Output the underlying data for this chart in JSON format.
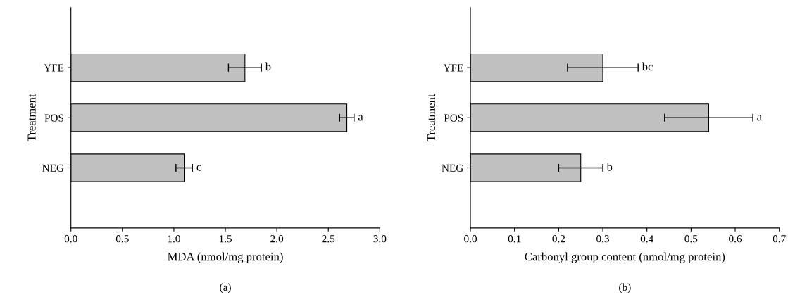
{
  "chart_data": [
    {
      "type": "bar",
      "orientation": "horizontal",
      "xlabel": "MDA (nmol/mg protein)",
      "ylabel": "Treatment",
      "categories": [
        "YFE",
        "POS",
        "NEG"
      ],
      "values": [
        1.69,
        2.68,
        1.1
      ],
      "errors": [
        0.16,
        0.07,
        0.08
      ],
      "color": "#c0c0c0",
      "xlim": [
        0,
        3
      ],
      "xticks": [
        {
          "value": 0,
          "label": "0.0"
        },
        {
          "value": 0.5,
          "label": "0.5"
        },
        {
          "value": 1,
          "label": "1.0"
        },
        {
          "value": 1.5,
          "label": "1.5"
        },
        {
          "value": 2,
          "label": "2.0"
        },
        {
          "value": 2.5,
          "label": "2.5"
        },
        {
          "value": 3,
          "label": "3.0"
        }
      ],
      "annotations": [
        {
          "text": "b",
          "x": 1.85,
          "y": "YFE"
        },
        {
          "text": "a",
          "x": 2.75,
          "y": "POS"
        },
        {
          "text": "c",
          "x": 1.18,
          "y": "NEG"
        },
        "(a)"
      ]
    },
    {
      "type": "bar",
      "orientation": "horizontal",
      "xlabel": "Carbonyl group content (nmol/mg protein)",
      "ylabel": "Treatment",
      "categories": [
        "YFE",
        "POS",
        "NEG"
      ],
      "values": [
        0.3,
        0.54,
        0.25
      ],
      "errors": [
        0.08,
        0.1,
        0.05
      ],
      "color": "#c0c0c0",
      "xlim": [
        0,
        0.7
      ],
      "xticks": [
        {
          "value": 0,
          "label": "0.0"
        },
        0.1,
        0.2,
        0.3,
        0.4,
        0.5,
        0.6,
        0.7
      ],
      "annotations": [
        {
          "text": "bc",
          "x": 0.38,
          "y": "YFE"
        },
        {
          "text": "a",
          "x": 0.64,
          "y": "POS"
        },
        {
          "text": "b",
          "x": 0.3,
          "y": "NEG"
        },
        "(b)"
      ]
    }
  ]
}
